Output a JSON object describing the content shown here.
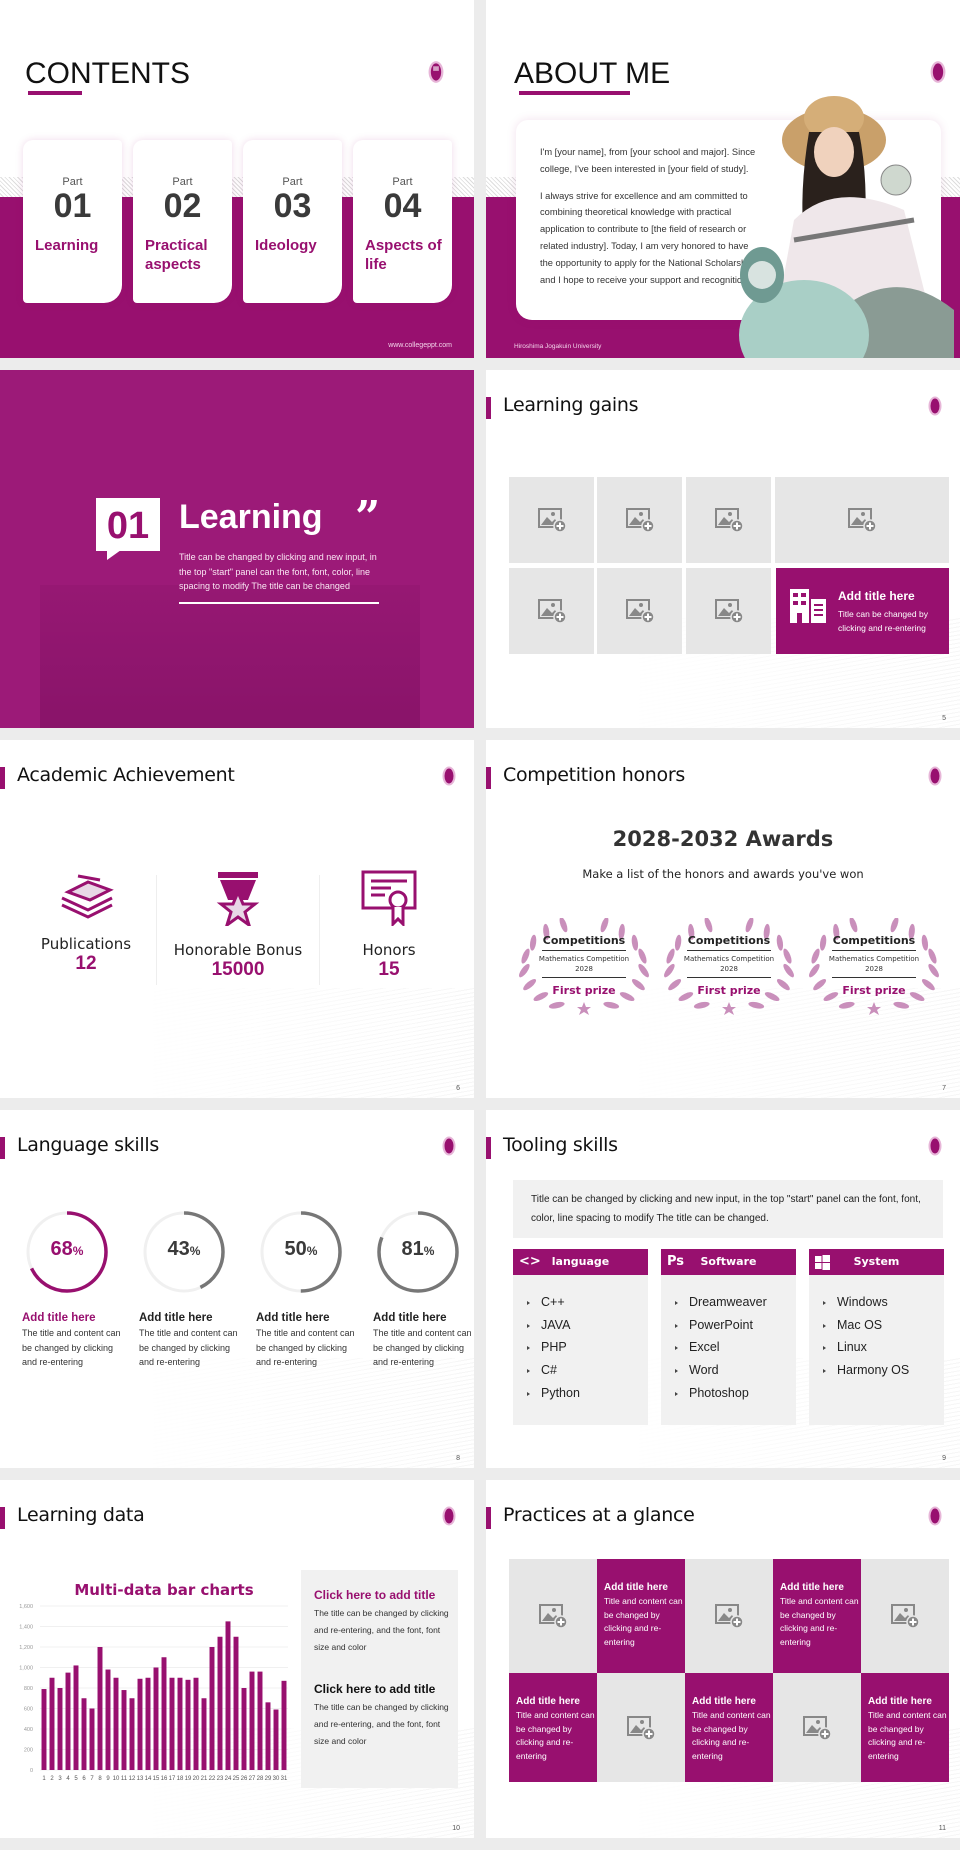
{
  "accent_color": "#98106f",
  "slides": {
    "contents": {
      "title": "CONTENTS",
      "parts": [
        {
          "part": "Part",
          "num": "01",
          "label": "Learning"
        },
        {
          "part": "Part",
          "num": "02",
          "label": "Practical aspects"
        },
        {
          "part": "Part",
          "num": "03",
          "label": "Ideology"
        },
        {
          "part": "Part",
          "num": "04",
          "label": "Aspects of life"
        }
      ],
      "footer": "www.collegeppt.com"
    },
    "about": {
      "title": "ABOUT ME",
      "p1": "I'm [your name], from [your school and major]. Since college, I've been interested in [your field of study].",
      "p2": "I always strive for excellence and am committed to combining theoretical knowledge with practical application to contribute to [the field of research or related industry]. Today, I am very honored to have the opportunity to apply for the National Scholarship, and I hope to receive your support and recognition.",
      "footer": "Hiroshima Jogakuin University"
    },
    "section": {
      "num": "01",
      "title": "Learning",
      "quote": "”",
      "text": "Title can be changed by clicking and new input, in the top \"start\" panel can the font, font, color, line spacing to modify The title can be changed"
    },
    "gains": {
      "title": "Learning gains",
      "feature_title": "Add title here",
      "feature_text": "Title can be changed by clicking and re-entering",
      "page": "5"
    },
    "academic": {
      "title": "Academic Achievement",
      "stats": [
        {
          "label": "Publications",
          "value": "12",
          "icon": "books-icon"
        },
        {
          "label": "Honorable Bonus",
          "value": "15000",
          "icon": "medal-icon"
        },
        {
          "label": "Honors",
          "value": "15",
          "icon": "certificate-icon"
        }
      ],
      "page": "6"
    },
    "competition": {
      "title": "Competition honors",
      "heading": "2028-2032 Awards",
      "subheading": "Make a list of the honors and awards you've won",
      "awards": [
        {
          "category": "Competitions",
          "name": "Mathematics Competition",
          "year": "2028",
          "prize": "First prize"
        },
        {
          "category": "Competitions",
          "name": "Mathematics Competition",
          "year": "2028",
          "prize": "First prize"
        },
        {
          "category": "Competitions",
          "name": "Mathematics Competition",
          "year": "2028",
          "prize": "First prize"
        }
      ],
      "page": "7"
    },
    "language": {
      "title": "Language skills",
      "items": [
        {
          "percent": 68,
          "value": "68",
          "unit": "%",
          "title": "Add title here",
          "text": "The title and content can be changed by clicking and re-entering"
        },
        {
          "percent": 43,
          "value": "43",
          "unit": "%",
          "title": "Add title here",
          "text": "The title and content can be changed by clicking and re-entering"
        },
        {
          "percent": 50,
          "value": "50",
          "unit": "%",
          "title": "Add title here",
          "text": "The title and content can be changed by clicking and re-entering"
        },
        {
          "percent": 81,
          "value": "81",
          "unit": "%",
          "title": "Add title here",
          "text": "The title and content can be changed by clicking and re-entering"
        }
      ],
      "page": "8"
    },
    "tooling": {
      "title": "Tooling skills",
      "intro": "Title can be changed by clicking and new input, in the top \"start\" panel can the font, font, color, line spacing to modify The title can be changed.",
      "panels": [
        {
          "icon": "code-icon",
          "icon_glyph": "<>",
          "label": "language",
          "items": [
            "C++",
            "JAVA",
            "PHP",
            "C#",
            "Python"
          ]
        },
        {
          "icon": "photoshop-icon",
          "icon_glyph": "Ps",
          "label": "Software",
          "items": [
            "Dreamweaver",
            "PowerPoint",
            "Excel",
            "Word",
            "Photoshop"
          ]
        },
        {
          "icon": "windows-icon",
          "icon_glyph": "",
          "label": "System",
          "items": [
            "Windows",
            "Mac OS",
            "Linux",
            "Harmony OS"
          ]
        }
      ],
      "page": "9"
    },
    "learning_data": {
      "title": "Learning data",
      "box": [
        {
          "title": "Click here to add title",
          "text": "The title can be changed by clicking and re-entering, and the font, font size and color"
        },
        {
          "title": "Click here to add title",
          "text": "The title can be changed by clicking and re-entering, and the font, font size and color"
        }
      ],
      "page": "10"
    },
    "practices": {
      "title": "Practices at a glance",
      "cell_title": "Add title here",
      "cell_text": "Title and content can be changed by clicking and re-entering",
      "page": "11"
    }
  },
  "chart_data": {
    "type": "bar",
    "title": "Multi-data bar charts",
    "categories": [
      "1",
      "2",
      "3",
      "4",
      "5",
      "6",
      "7",
      "8",
      "9",
      "10",
      "11",
      "12",
      "13",
      "14",
      "15",
      "16",
      "17",
      "18",
      "19",
      "20",
      "21",
      "22",
      "23",
      "24",
      "25",
      "26",
      "27",
      "28",
      "29",
      "30",
      "31"
    ],
    "values": [
      790,
      900,
      800,
      950,
      1020,
      700,
      600,
      1200,
      980,
      900,
      780,
      700,
      890,
      900,
      1000,
      1100,
      900,
      900,
      880,
      900,
      700,
      1200,
      1300,
      1450,
      1300,
      800,
      960,
      960,
      660,
      590,
      870
    ],
    "ylim": [
      0,
      1600
    ],
    "yticks": [
      "0",
      "200",
      "400",
      "600",
      "800",
      "1,000",
      "1,200",
      "1,400",
      "1,600"
    ],
    "grid": true,
    "color": "#98106f"
  }
}
